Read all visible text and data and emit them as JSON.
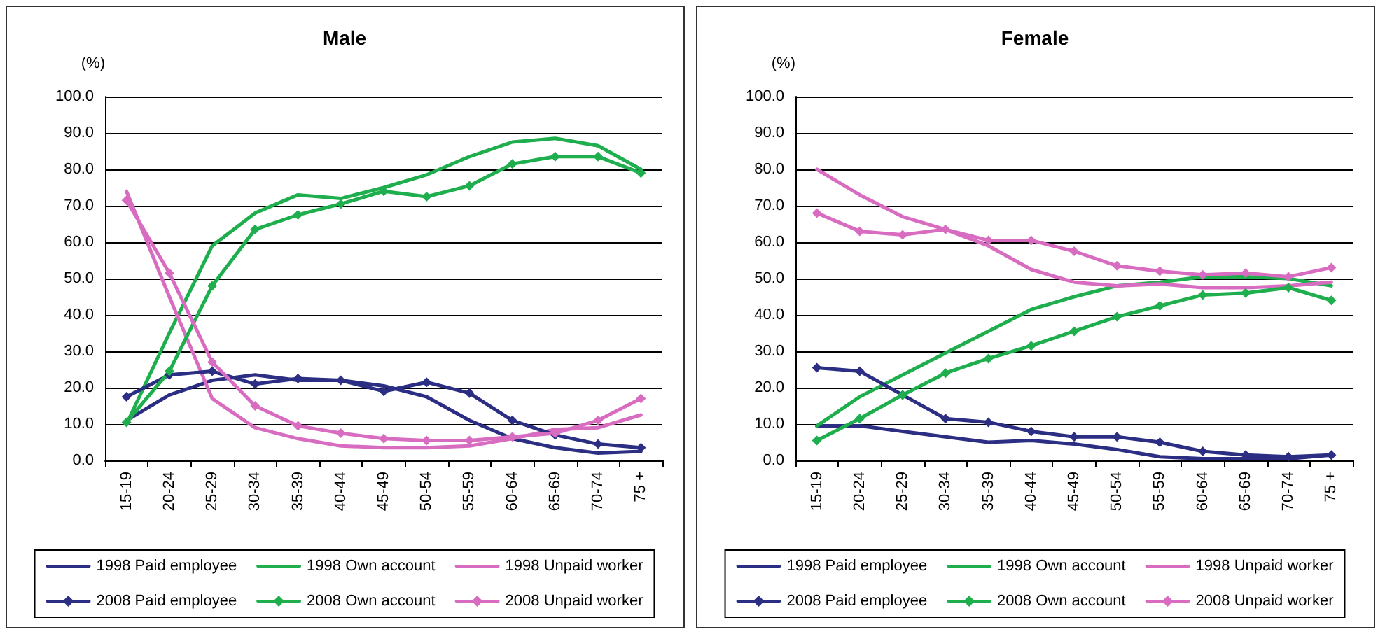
{
  "chart_data": [
    {
      "type": "line",
      "title": "Male",
      "ylabel": "(%)",
      "categories": [
        "15-19",
        "20-24",
        "25-29",
        "30-34",
        "35-39",
        "40-44",
        "45-49",
        "50-54",
        "55-59",
        "60-64",
        "65-69",
        "70-74",
        "75 +"
      ],
      "series": [
        {
          "name": "1998 Paid employee",
          "color": "#2b2e83",
          "marker": "none",
          "values": [
            11,
            18,
            22,
            23.5,
            22,
            22,
            20.5,
            17.5,
            11,
            6,
            3.5,
            2,
            2.5
          ]
        },
        {
          "name": "1998 Own account",
          "color": "#1fae4d",
          "marker": "none",
          "values": [
            10,
            35,
            59,
            68,
            73,
            72,
            75,
            78.5,
            83.5,
            87.5,
            88.5,
            86.5,
            80
          ]
        },
        {
          "name": "1998 Unpaid worker",
          "color": "#d86cc0",
          "marker": "none",
          "values": [
            74,
            45,
            17,
            9,
            6,
            4,
            3.5,
            3.5,
            4,
            6,
            8.5,
            9,
            12.5
          ]
        },
        {
          "name": "2008 Paid employee",
          "color": "#2b2e83",
          "marker": "diamond",
          "values": [
            17.5,
            23.5,
            24.5,
            21,
            22.5,
            22,
            19,
            21.5,
            18.5,
            11,
            7,
            4.5,
            3.5
          ]
        },
        {
          "name": "2008 Own account",
          "color": "#1fae4d",
          "marker": "diamond",
          "values": [
            10.5,
            24.5,
            48,
            63.5,
            67.5,
            70.5,
            74,
            72.5,
            75.5,
            81.5,
            83.5,
            83.5,
            79
          ]
        },
        {
          "name": "2008 Unpaid worker",
          "color": "#d86cc0",
          "marker": "diamond",
          "values": [
            71.5,
            51.5,
            27,
            15,
            9.5,
            7.5,
            6,
            5.5,
            5.5,
            6.5,
            7.5,
            11,
            17
          ]
        }
      ],
      "ylim": [
        0,
        100
      ],
      "yticks": [
        {
          "value": 0,
          "label": "0.0"
        },
        {
          "value": 10,
          "label": "10.0"
        },
        {
          "value": 20,
          "label": "20.0"
        },
        {
          "value": 30,
          "label": "30.0"
        },
        {
          "value": 40,
          "label": "40.0"
        },
        {
          "value": 50,
          "label": "50.0"
        },
        {
          "value": 60,
          "label": "60.0"
        },
        {
          "value": 70,
          "label": "70.0"
        },
        {
          "value": 80,
          "label": "80.0"
        },
        {
          "value": 90,
          "label": "90.0"
        },
        {
          "value": 100,
          "label": "100.0"
        }
      ],
      "grid": "y",
      "legend": "bottom"
    },
    {
      "type": "line",
      "title": "Female",
      "ylabel": "(%)",
      "categories": [
        "15-19",
        "20-24",
        "25-29",
        "30-34",
        "35-39",
        "40-44",
        "45-49",
        "50-54",
        "55-59",
        "60-64",
        "65-69",
        "70-74",
        "75 +"
      ],
      "series": [
        {
          "name": "1998 Paid employee",
          "color": "#2b2e83",
          "marker": "none",
          "values": [
            9.5,
            9.5,
            8,
            6.5,
            5,
            5.5,
            4.5,
            3,
            1,
            0.5,
            0.5,
            0.5,
            1.5
          ]
        },
        {
          "name": "1998 Own account",
          "color": "#1fae4d",
          "marker": "none",
          "values": [
            9.5,
            17.5,
            23.5,
            29.5,
            35.5,
            41.5,
            45,
            48,
            49,
            50.5,
            50.5,
            50,
            48
          ]
        },
        {
          "name": "1998 Unpaid worker",
          "color": "#d86cc0",
          "marker": "none",
          "values": [
            80,
            73,
            67,
            63.5,
            59,
            52.5,
            49,
            48,
            48.5,
            47.5,
            47.5,
            48,
            49
          ]
        },
        {
          "name": "2008 Paid employee",
          "color": "#2b2e83",
          "marker": "diamond",
          "values": [
            25.5,
            24.5,
            18,
            11.5,
            10.5,
            8,
            6.5,
            6.5,
            5,
            2.5,
            1.5,
            1,
            1.5
          ]
        },
        {
          "name": "2008 Own account",
          "color": "#1fae4d",
          "marker": "diamond",
          "values": [
            5.5,
            11.5,
            18,
            24,
            28,
            31.5,
            35.5,
            39.5,
            42.5,
            45.5,
            46,
            47.5,
            44
          ]
        },
        {
          "name": "2008 Unpaid worker",
          "color": "#d86cc0",
          "marker": "diamond",
          "values": [
            68,
            63,
            62,
            63.5,
            60.5,
            60.5,
            57.5,
            53.5,
            52,
            51,
            51.5,
            50.5,
            53
          ]
        }
      ],
      "ylim": [
        0,
        100
      ],
      "yticks": [
        {
          "value": 0,
          "label": "0.0"
        },
        {
          "value": 10,
          "label": "10.0"
        },
        {
          "value": 20,
          "label": "20.0"
        },
        {
          "value": 30,
          "label": "30.0"
        },
        {
          "value": 40,
          "label": "40.0"
        },
        {
          "value": 50,
          "label": "50.0"
        },
        {
          "value": 60,
          "label": "60.0"
        },
        {
          "value": 70,
          "label": "70.0"
        },
        {
          "value": 80,
          "label": "80.0"
        },
        {
          "value": 90,
          "label": "90.0"
        },
        {
          "value": 100,
          "label": "100.0"
        }
      ],
      "grid": "y",
      "legend": "bottom"
    }
  ]
}
